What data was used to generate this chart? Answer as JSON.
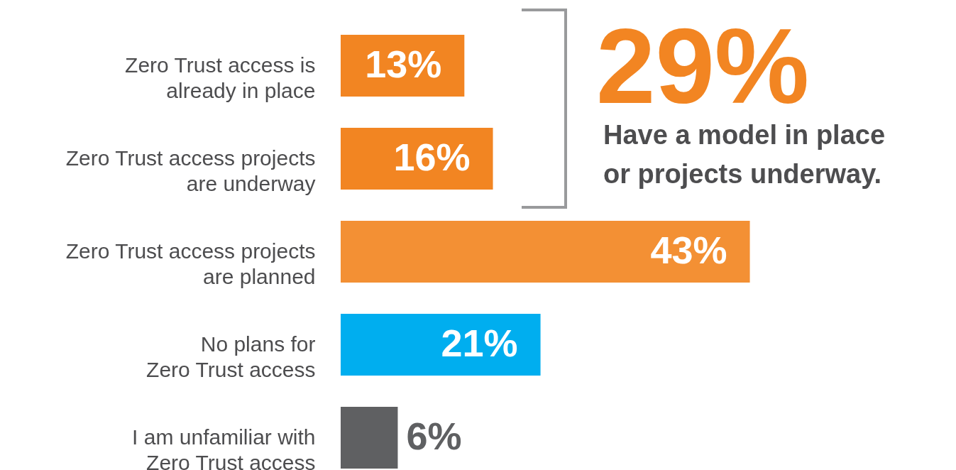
{
  "chart_data": {
    "type": "bar",
    "orientation": "horizontal",
    "categories": [
      "Zero Trust access is\nalready in place",
      "Zero Trust access projects\nare underway",
      "Zero Trust access projects\nare planned",
      "No plans for\nZero Trust access",
      "I am unfamiliar with\nZero Trust access"
    ],
    "values": [
      13,
      16,
      43,
      21,
      6
    ],
    "colors": [
      "#f28522",
      "#f28522",
      "#f39034",
      "#00aeef",
      "#5f6062"
    ],
    "value_labels": [
      "13%",
      "16%",
      "43%",
      "21%",
      "6%"
    ],
    "annotations": [
      "29%",
      "Have a model in place\nor projects underway."
    ]
  }
}
